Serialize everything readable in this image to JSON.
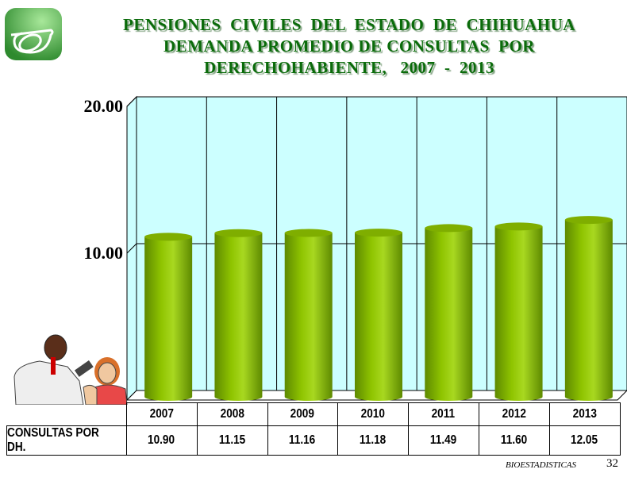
{
  "title_lines": [
    "PENSIONES  CIVILES  DEL  ESTADO  DE  CHIHUAHUA",
    "DEMANDA PROMEDIO DE CONSULTAS  POR",
    "DERECHOHABIENTE,   2007  -  2013"
  ],
  "chart_data": {
    "type": "bar",
    "title": "PENSIONES CIVILES DEL ESTADO DE CHIHUAHUA DEMANDA PROMEDIO DE CONSULTAS POR DERECHOHABIENTE, 2007 - 2013",
    "categories": [
      "2007",
      "2008",
      "2009",
      "2010",
      "2011",
      "2012",
      "2013"
    ],
    "series": [
      {
        "name": "CONSULTAS POR DH.",
        "values": [
          10.9,
          11.15,
          11.16,
          11.18,
          11.49,
          11.6,
          12.05
        ]
      }
    ],
    "value_labels": [
      "10.90",
      "11.15",
      "11.16",
      "11.18",
      "11.49",
      "11.60",
      "12.05"
    ],
    "y_ticks": [
      "10.00",
      "20.00"
    ],
    "ylim": [
      0,
      20
    ],
    "grid": true,
    "legend": "data table below chart",
    "style": "3d cylinder",
    "colors": {
      "bar": "#8fc400",
      "bar_dark": "#5e8a00",
      "wall": "#ccffff",
      "title": "#0a6b0a"
    }
  },
  "table": {
    "row_label": "CONSULTAS POR DH."
  },
  "footer": {
    "label": "BIOESTADISTICAS",
    "page": "32"
  }
}
